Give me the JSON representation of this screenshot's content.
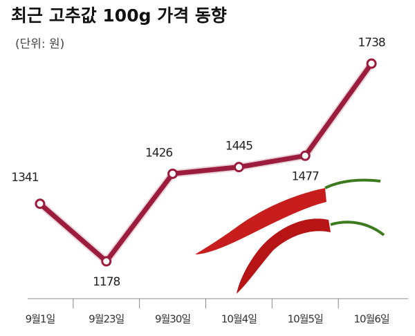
{
  "chart_data": {
    "type": "line",
    "title": "최근 고추값 100g 가격 동향",
    "subtitle": "(단위: 원)",
    "categories": [
      "9월1일",
      "9월23일",
      "9월30일",
      "10월4일",
      "10월5일",
      "10월6일"
    ],
    "values": [
      1341,
      1178,
      1426,
      1445,
      1477,
      1738
    ],
    "color": "#9b1c3c"
  }
}
